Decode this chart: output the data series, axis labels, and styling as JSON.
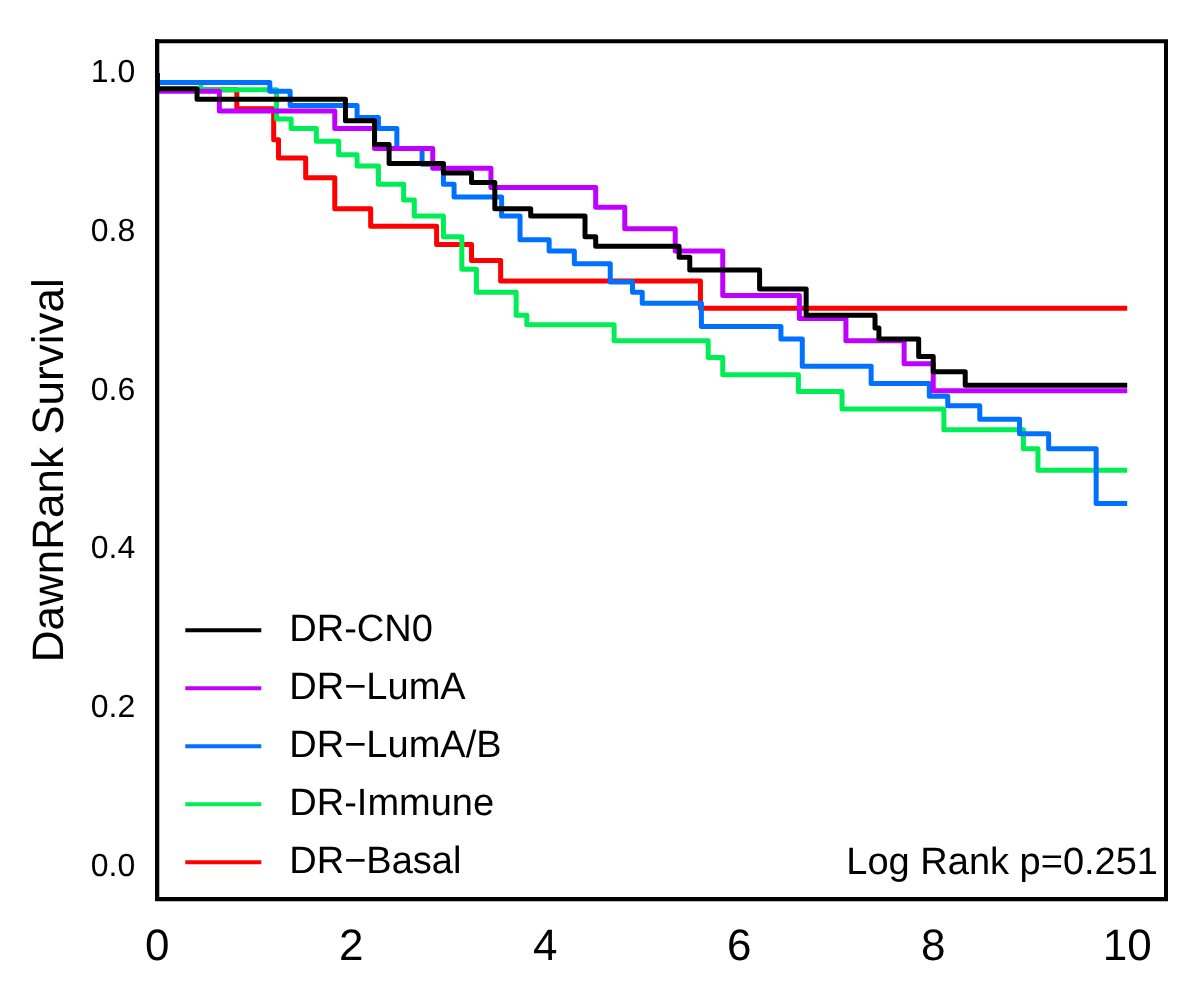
{
  "chart_data": {
    "type": "step",
    "ylabel": "DawnRank Survival",
    "xlim": [
      0,
      10.4
    ],
    "xticks": [
      0,
      2,
      4,
      6,
      8,
      10
    ],
    "ylim": [
      -0.04,
      1.04
    ],
    "yticks": [
      {
        "value": 0,
        "label": "0.0"
      },
      0.2,
      0.4,
      0.6,
      0.8,
      {
        "value": 1,
        "label": "1.0"
      }
    ],
    "grid": false,
    "legend": "bottom left",
    "annotations": [
      "Log Rank p=0.251"
    ],
    "series": [
      {
        "name": "DR-CN0",
        "color": "#000000",
        "x": [
          0,
          0.41,
          1.94,
          2.24,
          2.39,
          2.95,
          3.24,
          3.48,
          3.85,
          4.41,
          4.52,
          5.38,
          5.49,
          6.21,
          6.69,
          7.4,
          7.44,
          7.85,
          8.0,
          8.33,
          9.15,
          10.0
        ],
        "values": [
          1,
          0.98,
          0.967,
          0.94,
          0.91,
          0.886,
          0.874,
          0.862,
          0.829,
          0.82,
          0.794,
          0.782,
          0.768,
          0.752,
          0.728,
          0.695,
          0.679,
          0.665,
          0.643,
          0.624,
          0.607,
          0.607
        ]
      },
      {
        "name": "DR−LumA",
        "color": "#c000ff",
        "x": [
          0,
          0.64,
          1.83,
          2.24,
          2.84,
          3.44,
          4.52,
          4.82,
          5.34,
          5.83,
          6.62,
          7.1,
          7.7,
          8.0,
          9.53,
          10.0
        ],
        "values": [
          1,
          0.977,
          0.952,
          0.93,
          0.905,
          0.88,
          0.856,
          0.831,
          0.804,
          0.776,
          0.72,
          0.691,
          0.663,
          0.634,
          0.6,
          0.6
        ]
      },
      {
        "name": "DR−LumA/B",
        "color": "#0070ff",
        "x": [
          0,
          1.16,
          1.37,
          2.06,
          2.28,
          2.47,
          2.73,
          2.95,
          3.06,
          3.55,
          3.74,
          4.04,
          4.3,
          4.67,
          4.9,
          5.0,
          5.61,
          6.43,
          6.65,
          7.36,
          7.96,
          8.15,
          8.48,
          8.89,
          9.19,
          9.68,
          9.79,
          10.0
        ],
        "values": [
          1,
          0.988,
          0.977,
          0.959,
          0.944,
          0.93,
          0.905,
          0.885,
          0.86,
          0.844,
          0.82,
          0.79,
          0.776,
          0.76,
          0.737,
          0.724,
          0.71,
          0.681,
          0.665,
          0.631,
          0.609,
          0.593,
          0.581,
          0.564,
          0.546,
          0.527,
          0.458,
          0.458
        ]
      },
      {
        "name": "DR-Immune",
        "color": "#00ee55",
        "x": [
          0,
          0.45,
          1.23,
          1.38,
          1.64,
          1.87,
          2.06,
          2.28,
          2.54,
          2.65,
          2.95,
          3.14,
          3.29,
          3.7,
          3.81,
          4.71,
          5.68,
          5.83,
          6.61,
          7.06,
          8.11,
          8.93,
          9.08,
          9.68,
          10.0
        ],
        "values": [
          1,
          0.988,
          0.979,
          0.942,
          0.93,
          0.914,
          0.897,
          0.883,
          0.86,
          0.84,
          0.82,
          0.794,
          0.753,
          0.724,
          0.695,
          0.683,
          0.663,
          0.642,
          0.62,
          0.599,
          0.577,
          0.551,
          0.527,
          0.5,
          0.5
        ]
      },
      {
        "name": "DR−Basal",
        "color": "#ff0000",
        "x": [
          0,
          0.82,
          1.2,
          1.25,
          1.53,
          1.83,
          2.2,
          2.88,
          3.24,
          3.54,
          5.6,
          9.83,
          10.0
        ],
        "values": [
          1,
          0.979,
          0.955,
          0.916,
          0.893,
          0.868,
          0.829,
          0.807,
          0.784,
          0.764,
          0.738,
          0.704,
          0.704
        ]
      }
    ]
  }
}
